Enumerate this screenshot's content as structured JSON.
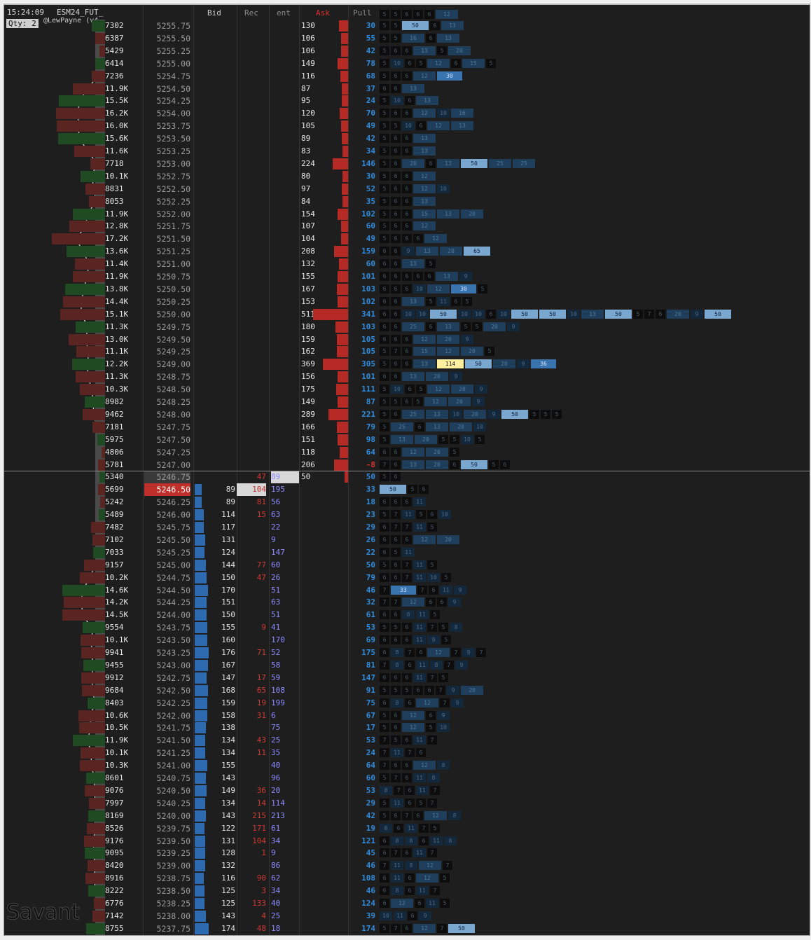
{
  "header": {
    "time": "15:24:09",
    "symbol": "ESM24_FUT_",
    "qty": "Qty: 2",
    "author": "@LewPayne (v4."
  },
  "columns": {
    "bid": "Bid",
    "rec": "Rec",
    "ent": "ent",
    "ask": "Ask",
    "pull": "Pull"
  },
  "watermark": "Savant",
  "top_boxes": [
    "5",
    "5",
    "6",
    "6",
    "6",
    "12"
  ],
  "colors": {
    "ask": "#b52a25",
    "bid": "#2e6ab0",
    "pull": "#2f8de0",
    "highlight": "#fff0a0",
    "last_price": "#c0302a"
  },
  "ask_rows": [
    {
      "vol": "7302",
      "price": "5255.75",
      "ask": "130",
      "pull": "30",
      "boxes": [
        "5",
        "5",
        "50",
        "6",
        "13"
      ]
    },
    {
      "vol": "6387",
      "price": "5255.50",
      "ask": "106",
      "pull": "55",
      "boxes": [
        "5",
        "5",
        "16",
        "6",
        "13"
      ]
    },
    {
      "vol": "5429",
      "price": "5255.25",
      "ask": "106",
      "pull": "42",
      "boxes": [
        "5",
        "6",
        "6",
        "13",
        "5",
        "20"
      ]
    },
    {
      "vol": "6414",
      "price": "5255.00",
      "ask": "149",
      "pull": "78",
      "boxes": [
        "5",
        "10",
        "6",
        "5",
        "12",
        "6",
        "15",
        "5"
      ]
    },
    {
      "vol": "7236",
      "price": "5254.75",
      "ask": "116",
      "pull": "68",
      "boxes": [
        "5",
        "6",
        "6",
        "12",
        "30"
      ]
    },
    {
      "vol": "11.9K",
      "price": "5254.50",
      "ask": "87",
      "pull": "37",
      "boxes": [
        "6",
        "6",
        "13"
      ]
    },
    {
      "vol": "15.5K",
      "price": "5254.25",
      "ask": "95",
      "pull": "24",
      "boxes": [
        "5",
        "10",
        "6",
        "13"
      ]
    },
    {
      "vol": "16.2K",
      "price": "5254.00",
      "ask": "120",
      "pull": "70",
      "boxes": [
        "5",
        "6",
        "6",
        "12",
        "10",
        "16"
      ]
    },
    {
      "vol": "16.0K",
      "price": "5253.75",
      "ask": "105",
      "pull": "49",
      "boxes": [
        "5",
        "5",
        "10",
        "6",
        "12",
        "13"
      ]
    },
    {
      "vol": "15.6K",
      "price": "5253.50",
      "ask": "89",
      "pull": "42",
      "boxes": [
        "5",
        "6",
        "6",
        "13"
      ]
    },
    {
      "vol": "11.6K",
      "price": "5253.25",
      "ask": "83",
      "pull": "34",
      "boxes": [
        "5",
        "6",
        "6",
        "13"
      ]
    },
    {
      "vol": "7718",
      "price": "5253.00",
      "ask": "224",
      "pull": "146",
      "boxes": [
        "5",
        "6",
        "20",
        "6",
        "13",
        "50",
        "25",
        "25"
      ]
    },
    {
      "vol": "10.1K",
      "price": "5252.75",
      "ask": "80",
      "pull": "30",
      "boxes": [
        "5",
        "6",
        "6",
        "12"
      ]
    },
    {
      "vol": "8831",
      "price": "5252.50",
      "ask": "97",
      "pull": "52",
      "boxes": [
        "5",
        "6",
        "6",
        "12",
        "10"
      ]
    },
    {
      "vol": "8053",
      "price": "5252.25",
      "ask": "84",
      "pull": "35",
      "boxes": [
        "5",
        "6",
        "6",
        "13"
      ]
    },
    {
      "vol": "11.9K",
      "price": "5252.00",
      "ask": "154",
      "pull": "102",
      "boxes": [
        "5",
        "6",
        "6",
        "15",
        "13",
        "20"
      ]
    },
    {
      "vol": "12.8K",
      "price": "5251.75",
      "ask": "107",
      "pull": "60",
      "boxes": [
        "5",
        "6",
        "6",
        "12"
      ]
    },
    {
      "vol": "17.2K",
      "price": "5251.50",
      "ask": "104",
      "pull": "49",
      "boxes": [
        "5",
        "6",
        "6",
        "6",
        "12"
      ]
    },
    {
      "vol": "13.6K",
      "price": "5251.25",
      "ask": "208",
      "pull": "159",
      "boxes": [
        "6",
        "6",
        "9",
        "13",
        "20",
        "65"
      ]
    },
    {
      "vol": "11.4K",
      "price": "5251.00",
      "ask": "132",
      "pull": "60",
      "boxes": [
        "6",
        "6",
        "13",
        "5"
      ]
    },
    {
      "vol": "11.9K",
      "price": "5250.75",
      "ask": "155",
      "pull": "101",
      "boxes": [
        "6",
        "6",
        "6",
        "6",
        "6",
        "13",
        "9"
      ]
    },
    {
      "vol": "13.8K",
      "price": "5250.50",
      "ask": "167",
      "pull": "103",
      "boxes": [
        "6",
        "6",
        "6",
        "10",
        "12",
        "30",
        "5"
      ]
    },
    {
      "vol": "14.4K",
      "price": "5250.25",
      "ask": "153",
      "pull": "102",
      "boxes": [
        "6",
        "6",
        "13",
        "5",
        "11",
        "6",
        "5"
      ]
    },
    {
      "vol": "15.1K",
      "price": "5250.00",
      "ask": "511",
      "pull": "341",
      "boxes": [
        "6",
        "6",
        "10",
        "10",
        "50",
        "10",
        "10",
        "6",
        "10",
        "50",
        "50",
        "10",
        "13",
        "50",
        "5",
        "7",
        "6",
        "20",
        "9",
        "50"
      ]
    },
    {
      "vol": "11.3K",
      "price": "5249.75",
      "ask": "180",
      "pull": "103",
      "boxes": [
        "6",
        "6",
        "25",
        "6",
        "13",
        "5",
        "5",
        "20",
        "9"
      ]
    },
    {
      "vol": "13.0K",
      "price": "5249.50",
      "ask": "159",
      "pull": "105",
      "boxes": [
        "6",
        "6",
        "6",
        "12",
        "20",
        "9"
      ]
    },
    {
      "vol": "11.1K",
      "price": "5249.25",
      "ask": "162",
      "pull": "105",
      "boxes": [
        "5",
        "7",
        "6",
        "15",
        "12",
        "20",
        "5"
      ]
    },
    {
      "vol": "12.2K",
      "price": "5249.00",
      "ask": "369",
      "pull": "305",
      "boxes": [
        "5",
        "6",
        "6",
        "13",
        "114",
        "50",
        "20",
        "9",
        "36"
      ]
    },
    {
      "vol": "11.3K",
      "price": "5248.75",
      "ask": "156",
      "pull": "101",
      "boxes": [
        "6",
        "6",
        "13",
        "20",
        "9"
      ]
    },
    {
      "vol": "10.3K",
      "price": "5248.50",
      "ask": "175",
      "pull": "111",
      "boxes": [
        "5",
        "10",
        "6",
        "5",
        "12",
        "20",
        "9"
      ]
    },
    {
      "vol": "8982",
      "price": "5248.25",
      "ask": "149",
      "pull": "87",
      "boxes": [
        "5",
        "5",
        "6",
        "5",
        "12",
        "20",
        "9"
      ]
    },
    {
      "vol": "9462",
      "price": "5248.00",
      "ask": "289",
      "pull": "221",
      "boxes": [
        "5",
        "6",
        "25",
        "13",
        "10",
        "20",
        "9",
        "50",
        "5",
        "5",
        "5"
      ]
    },
    {
      "vol": "7181",
      "price": "5247.75",
      "ask": "166",
      "pull": "79",
      "boxes": [
        "5",
        "25",
        "6",
        "13",
        "20",
        "10"
      ]
    },
    {
      "vol": "5975",
      "price": "5247.50",
      "ask": "151",
      "pull": "98",
      "boxes": [
        "5",
        "13",
        "20",
        "5",
        "5",
        "10",
        "5"
      ]
    },
    {
      "vol": "4806",
      "price": "5247.25",
      "ask": "118",
      "pull": "64",
      "boxes": [
        "6",
        "6",
        "12",
        "20",
        "5"
      ]
    },
    {
      "vol": "5781",
      "price": "5247.00",
      "ask": "206",
      "pull": "-8",
      "boxes": [
        "7",
        "6",
        "13",
        "20",
        "6",
        "50",
        "5",
        "6"
      ]
    }
  ],
  "inside_rows": [
    {
      "vol": "5340",
      "price": "5246.75",
      "rec": "47",
      "ent": "89",
      "ask": "50",
      "pull": "50",
      "boxes": [
        "5",
        "6"
      ]
    },
    {
      "vol": "5699",
      "price": "5246.50",
      "bid": "89",
      "rec": "104",
      "ent": "195",
      "pull": "33",
      "boxes": [
        "50",
        "5",
        "6"
      ]
    }
  ],
  "bid_rows": [
    {
      "vol": "5242",
      "price": "5246.25",
      "bid": "89",
      "rec": "81",
      "ent": "56",
      "pull": "18",
      "boxes": [
        "6",
        "6",
        "6",
        "11"
      ]
    },
    {
      "vol": "5489",
      "price": "5246.00",
      "bid": "114",
      "rec": "15",
      "ent": "63",
      "pull": "23",
      "boxes": [
        "5",
        "7",
        "11",
        "5",
        "6",
        "10"
      ]
    },
    {
      "vol": "7482",
      "price": "5245.75",
      "bid": "117",
      "rec": "",
      "ent": "22",
      "pull": "29",
      "boxes": [
        "6",
        "7",
        "7",
        "11",
        "5"
      ]
    },
    {
      "vol": "7102",
      "price": "5245.50",
      "bid": "131",
      "rec": "",
      "ent": "9",
      "pull": "26",
      "boxes": [
        "6",
        "6",
        "6",
        "12",
        "20"
      ]
    },
    {
      "vol": "7033",
      "price": "5245.25",
      "bid": "124",
      "rec": "",
      "ent": "147",
      "pull": "22",
      "boxes": [
        "6",
        "5",
        "11"
      ]
    },
    {
      "vol": "9157",
      "price": "5245.00",
      "bid": "144",
      "rec": "77",
      "ent": "60",
      "pull": "50",
      "boxes": [
        "5",
        "6",
        "7",
        "11",
        "5"
      ]
    },
    {
      "vol": "10.2K",
      "price": "5244.75",
      "bid": "150",
      "rec": "47",
      "ent": "26",
      "pull": "79",
      "boxes": [
        "6",
        "6",
        "7",
        "11",
        "10",
        "5"
      ]
    },
    {
      "vol": "14.6K",
      "price": "5244.50",
      "bid": "170",
      "rec": "",
      "ent": "51",
      "pull": "46",
      "boxes": [
        "7",
        "33",
        "7",
        "6",
        "11",
        "9"
      ]
    },
    {
      "vol": "14.2K",
      "price": "5244.25",
      "bid": "151",
      "rec": "",
      "ent": "63",
      "pull": "32",
      "boxes": [
        "7",
        "7",
        "12",
        "6",
        "6",
        "9"
      ]
    },
    {
      "vol": "14.5K",
      "price": "5244.00",
      "bid": "150",
      "rec": "",
      "ent": "51",
      "pull": "61",
      "boxes": [
        "6",
        "6",
        "8",
        "11",
        "5"
      ]
    },
    {
      "vol": "9554",
      "price": "5243.75",
      "bid": "155",
      "rec": "9",
      "ent": "41",
      "pull": "53",
      "boxes": [
        "5",
        "5",
        "6",
        "11",
        "7",
        "5",
        "8"
      ]
    },
    {
      "vol": "10.1K",
      "price": "5243.50",
      "bid": "160",
      "rec": "",
      "ent": "170",
      "pull": "69",
      "boxes": [
        "6",
        "6",
        "6",
        "11",
        "9",
        "5"
      ]
    },
    {
      "vol": "9941",
      "price": "5243.25",
      "bid": "176",
      "rec": "71",
      "ent": "52",
      "pull": "175",
      "boxes": [
        "6",
        "8",
        "7",
        "6",
        "12",
        "7",
        "9",
        "7"
      ]
    },
    {
      "vol": "9455",
      "price": "5243.00",
      "bid": "167",
      "rec": "",
      "ent": "58",
      "pull": "81",
      "boxes": [
        "7",
        "8",
        "6",
        "11",
        "8",
        "7",
        "9"
      ]
    },
    {
      "vol": "9912",
      "price": "5242.75",
      "bid": "147",
      "rec": "17",
      "ent": "59",
      "pull": "147",
      "boxes": [
        "6",
        "6",
        "6",
        "11",
        "7",
        "5"
      ]
    },
    {
      "vol": "9684",
      "price": "5242.50",
      "bid": "168",
      "rec": "65",
      "ent": "108",
      "pull": "91",
      "boxes": [
        "5",
        "5",
        "5",
        "6",
        "6",
        "7",
        "9",
        "20"
      ]
    },
    {
      "vol": "8403",
      "price": "5242.25",
      "bid": "159",
      "rec": "19",
      "ent": "199",
      "pull": "75",
      "boxes": [
        "6",
        "8",
        "6",
        "12",
        "7",
        "9"
      ]
    },
    {
      "vol": "10.6K",
      "price": "5242.00",
      "bid": "158",
      "rec": "31",
      "ent": "6",
      "pull": "67",
      "boxes": [
        "5",
        "6",
        "12",
        "6",
        "9"
      ]
    },
    {
      "vol": "10.5K",
      "price": "5241.75",
      "bid": "138",
      "rec": "",
      "ent": "75",
      "pull": "17",
      "boxes": [
        "5",
        "6",
        "12",
        "5",
        "10"
      ]
    },
    {
      "vol": "11.9K",
      "price": "5241.50",
      "bid": "134",
      "rec": "43",
      "ent": "25",
      "pull": "53",
      "boxes": [
        "7",
        "5",
        "6",
        "11",
        "7"
      ]
    },
    {
      "vol": "10.1K",
      "price": "5241.25",
      "bid": "134",
      "rec": "11",
      "ent": "35",
      "pull": "24",
      "boxes": [
        "7",
        "11",
        "7",
        "6"
      ]
    },
    {
      "vol": "10.3K",
      "price": "5241.00",
      "bid": "155",
      "rec": "",
      "ent": "40",
      "pull": "64",
      "boxes": [
        "7",
        "6",
        "6",
        "12",
        "8"
      ]
    },
    {
      "vol": "8601",
      "price": "5240.75",
      "bid": "143",
      "rec": "",
      "ent": "96",
      "pull": "60",
      "boxes": [
        "5",
        "7",
        "6",
        "11",
        "8"
      ]
    },
    {
      "vol": "9076",
      "price": "5240.50",
      "bid": "149",
      "rec": "36",
      "ent": "20",
      "pull": "53",
      "boxes": [
        "8",
        "7",
        "6",
        "11",
        "7"
      ]
    },
    {
      "vol": "7997",
      "price": "5240.25",
      "bid": "134",
      "rec": "14",
      "ent": "114",
      "pull": "29",
      "boxes": [
        "5",
        "11",
        "6",
        "5",
        "7"
      ]
    },
    {
      "vol": "8169",
      "price": "5240.00",
      "bid": "143",
      "rec": "215",
      "ent": "213",
      "pull": "42",
      "boxes": [
        "5",
        "6",
        "7",
        "6",
        "12",
        "8"
      ]
    },
    {
      "vol": "8526",
      "price": "5239.75",
      "bid": "122",
      "rec": "171",
      "ent": "61",
      "pull": "19",
      "boxes": [
        "8",
        "6",
        "11",
        "7",
        "5"
      ]
    },
    {
      "vol": "9176",
      "price": "5239.50",
      "bid": "131",
      "rec": "104",
      "ent": "34",
      "pull": "121",
      "boxes": [
        "6",
        "8",
        "8",
        "6",
        "11",
        "8"
      ]
    },
    {
      "vol": "9095",
      "price": "5239.25",
      "bid": "128",
      "rec": "1",
      "ent": "9",
      "pull": "45",
      "boxes": [
        "6",
        "7",
        "6",
        "11",
        "7"
      ]
    },
    {
      "vol": "8420",
      "price": "5239.00",
      "bid": "132",
      "rec": "",
      "ent": "86",
      "pull": "46",
      "boxes": [
        "7",
        "11",
        "8",
        "12",
        "7"
      ]
    },
    {
      "vol": "8916",
      "price": "5238.75",
      "bid": "116",
      "rec": "90",
      "ent": "62",
      "pull": "108",
      "boxes": [
        "6",
        "11",
        "6",
        "12",
        "5"
      ]
    },
    {
      "vol": "8222",
      "price": "5238.50",
      "bid": "125",
      "rec": "3",
      "ent": "34",
      "pull": "46",
      "boxes": [
        "6",
        "8",
        "6",
        "11",
        "7"
      ]
    },
    {
      "vol": "6776",
      "price": "5238.25",
      "bid": "125",
      "rec": "133",
      "ent": "40",
      "pull": "124",
      "boxes": [
        "6",
        "12",
        "6",
        "11",
        "5"
      ]
    },
    {
      "vol": "7142",
      "price": "5238.00",
      "bid": "143",
      "rec": "4",
      "ent": "25",
      "pull": "39",
      "boxes": [
        "10",
        "11",
        "6",
        "9"
      ]
    },
    {
      "vol": "8755",
      "price": "5237.75",
      "bid": "174",
      "rec": "48",
      "ent": "18",
      "pull": "174",
      "boxes": [
        "5",
        "7",
        "6",
        "12",
        "7",
        "50"
      ]
    }
  ]
}
